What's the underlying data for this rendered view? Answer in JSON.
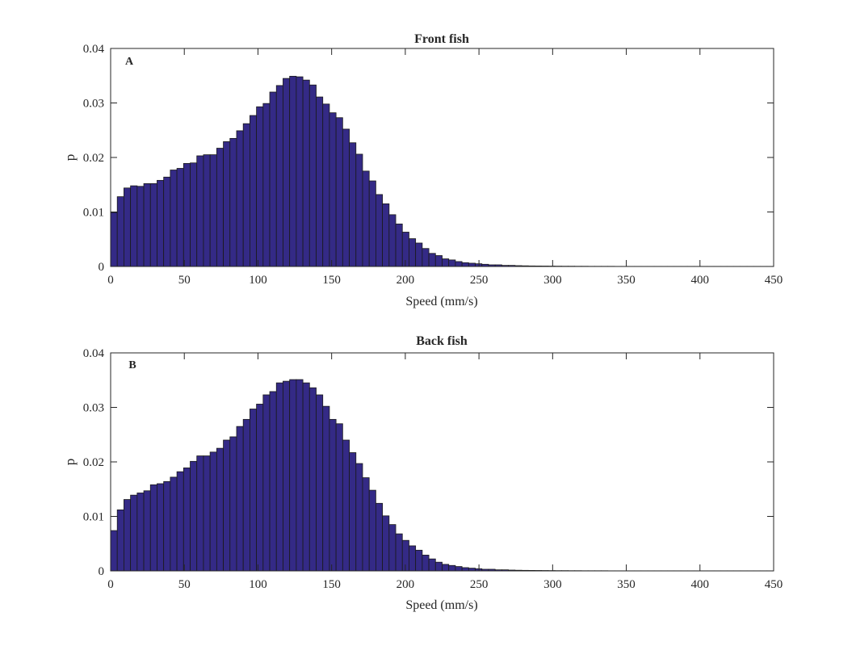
{
  "chart_data": [
    {
      "type": "bar",
      "title": "Front fish",
      "panel_label": "A",
      "xlabel": "Speed (mm/s)",
      "ylabel": "p",
      "xlim": [
        0,
        450
      ],
      "ylim": [
        0,
        0.04
      ],
      "bin_width": 4.5,
      "xticks": [
        "0",
        "50",
        "100",
        "150",
        "200",
        "250",
        "300",
        "350",
        "400",
        "450"
      ],
      "yticks": [
        "0",
        "0.01",
        "0.02",
        "0.03",
        "0.04"
      ],
      "values": [
        0.0099,
        0.0128,
        0.0144,
        0.0148,
        0.0147,
        0.0152,
        0.0152,
        0.0158,
        0.0164,
        0.0177,
        0.018,
        0.0189,
        0.019,
        0.0203,
        0.0205,
        0.0205,
        0.0217,
        0.0229,
        0.0235,
        0.0249,
        0.0262,
        0.0277,
        0.0293,
        0.0299,
        0.032,
        0.0332,
        0.0345,
        0.0349,
        0.0348,
        0.0342,
        0.0333,
        0.0311,
        0.0298,
        0.0282,
        0.0273,
        0.0252,
        0.0227,
        0.0206,
        0.0175,
        0.0157,
        0.0132,
        0.0115,
        0.0095,
        0.0078,
        0.0063,
        0.0051,
        0.0043,
        0.0033,
        0.0024,
        0.002,
        0.0014,
        0.0012,
        0.0009,
        0.0007,
        0.0006,
        0.0005,
        0.0004,
        0.0003,
        0.0003,
        0.0002,
        0.0002,
        0.00015,
        0.00012,
        0.0001,
        9e-05,
        8e-05,
        7e-05,
        6e-05,
        5e-05,
        5e-05,
        4e-05,
        4e-05,
        3e-05,
        3e-05,
        3e-05,
        3e-05,
        2e-05,
        2e-05,
        2e-05,
        2e-05,
        2e-05,
        2e-05,
        2e-05,
        2e-05,
        2e-05,
        2e-05,
        2e-05,
        2e-05,
        2e-05,
        2e-05,
        2e-05,
        2e-05,
        2e-05,
        2e-05,
        2e-05,
        2e-05,
        2e-05,
        2e-05,
        2e-05,
        2e-05
      ],
      "bar_color": "#342a86",
      "edge_color": "#1a1a1a"
    },
    {
      "type": "bar",
      "title": "Back fish",
      "panel_label": "B",
      "xlabel": "Speed (mm/s)",
      "ylabel": "p",
      "xlim": [
        0,
        450
      ],
      "ylim": [
        0,
        0.04
      ],
      "bin_width": 4.5,
      "xticks": [
        "0",
        "50",
        "100",
        "150",
        "200",
        "250",
        "300",
        "350",
        "400",
        "450"
      ],
      "yticks": [
        "0",
        "0.01",
        "0.02",
        "0.03",
        "0.04"
      ],
      "values": [
        0.0074,
        0.0112,
        0.0131,
        0.0139,
        0.0143,
        0.0147,
        0.0158,
        0.016,
        0.0164,
        0.0172,
        0.0182,
        0.0189,
        0.0201,
        0.0211,
        0.0211,
        0.0218,
        0.0225,
        0.024,
        0.0246,
        0.0265,
        0.0278,
        0.0297,
        0.0306,
        0.0323,
        0.0329,
        0.0345,
        0.0348,
        0.0351,
        0.0351,
        0.0345,
        0.0336,
        0.0323,
        0.0302,
        0.0278,
        0.027,
        0.024,
        0.0217,
        0.0197,
        0.0171,
        0.0148,
        0.0124,
        0.0101,
        0.0085,
        0.0068,
        0.0056,
        0.0046,
        0.0038,
        0.0029,
        0.0022,
        0.0016,
        0.0012,
        0.001,
        0.0008,
        0.0006,
        0.0005,
        0.0004,
        0.0003,
        0.0003,
        0.0002,
        0.0002,
        0.00015,
        0.00012,
        0.0001,
        9e-05,
        8e-05,
        7e-05,
        6e-05,
        5e-05,
        5e-05,
        4e-05,
        4e-05,
        3e-05,
        3e-05,
        3e-05,
        3e-05,
        2e-05,
        2e-05,
        2e-05,
        2e-05,
        2e-05,
        2e-05,
        2e-05,
        2e-05,
        2e-05,
        2e-05,
        2e-05,
        2e-05,
        2e-05,
        2e-05,
        2e-05,
        2e-05,
        2e-05,
        2e-05,
        2e-05,
        2e-05,
        2e-05,
        2e-05,
        2e-05,
        2e-05,
        2e-05
      ],
      "bar_color": "#342a86",
      "edge_color": "#1a1a1a"
    }
  ]
}
